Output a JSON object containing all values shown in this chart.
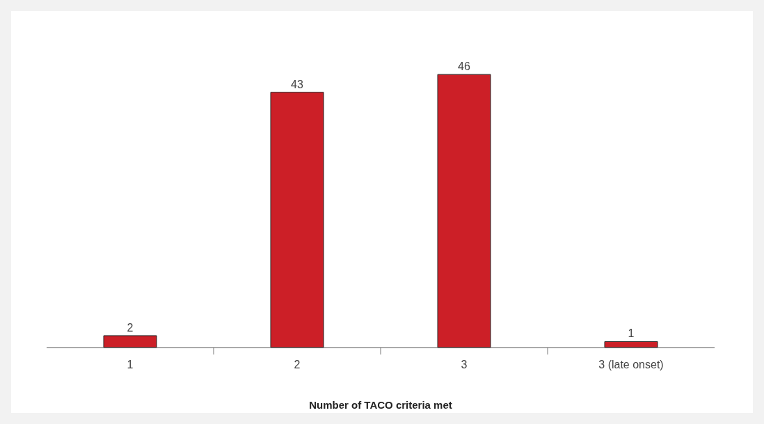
{
  "chart_data": {
    "type": "bar",
    "xlabel": "Number of TACO criteria met",
    "categories": [
      "1",
      "2",
      "3",
      "3 (late onset)"
    ],
    "values": [
      2,
      43,
      46,
      1
    ],
    "color": "#cc1f27",
    "data_labels": true
  }
}
